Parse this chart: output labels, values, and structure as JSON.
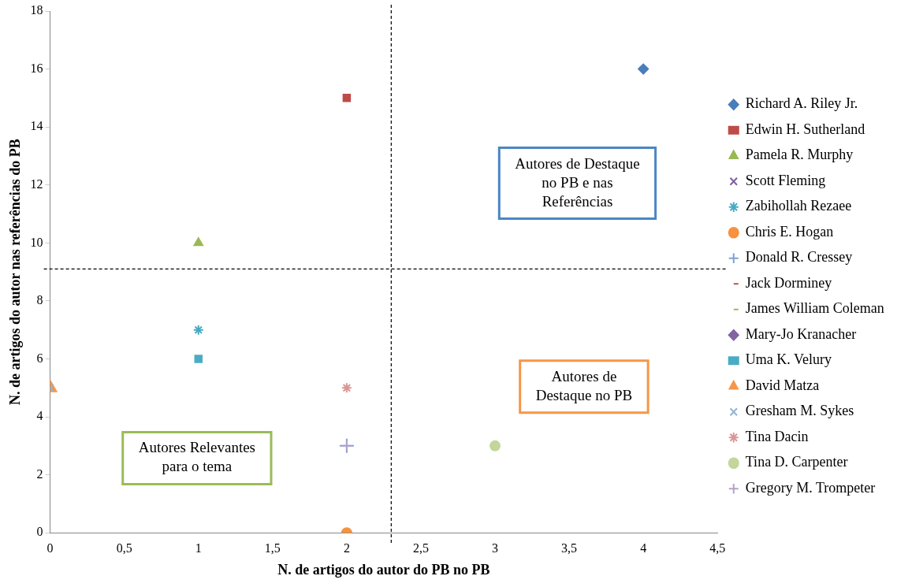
{
  "chart_data": {
    "type": "scatter",
    "xlabel": "N. de artigos do autor do PB no PB",
    "ylabel": "N. de artigos do autor nas referências do PB",
    "xlim": [
      0,
      4.5
    ],
    "xticks": [
      0,
      {
        "value": 0.5,
        "label": "0,5"
      },
      1,
      {
        "value": 1.5,
        "label": "1,5"
      },
      2,
      {
        "value": 2.5,
        "label": "2,5"
      },
      3,
      {
        "value": 3.5,
        "label": "3,5"
      },
      4,
      {
        "value": 4.5,
        "label": "4,5"
      }
    ],
    "ylim": [
      0,
      18
    ],
    "yticks": [
      0,
      2,
      4,
      6,
      8,
      10,
      12,
      14,
      16,
      18
    ],
    "grid": false,
    "legend": "right",
    "series": [
      {
        "name": "Richard A. Riley Jr.",
        "color": "#4a7ebb",
        "marker": "diamond",
        "x": [
          4
        ],
        "values": [
          16
        ]
      },
      {
        "name": "Edwin H. Sutherland",
        "color": "#be4b48",
        "marker": "square",
        "x": [
          2
        ],
        "values": [
          15
        ]
      },
      {
        "name": "Pamela R. Murphy",
        "color": "#98b954",
        "marker": "triangle",
        "x": [
          1
        ],
        "values": [
          10
        ]
      },
      {
        "name": "Scott Fleming",
        "color": "#7d60a0",
        "marker": "x",
        "x": [
          null
        ],
        "values": [
          null
        ]
      },
      {
        "name": "Zabihollah Rezaee",
        "color": "#46aac5",
        "x": [
          1
        ],
        "values": [
          7
        ]
      },
      {
        "name": "Chris E. Hogan",
        "color": "#f69240",
        "marker": "circle",
        "x": [
          2
        ],
        "values": [
          0
        ]
      },
      {
        "name": "Donald R. Cressey",
        "color": "#7f9fd6",
        "marker": "cross",
        "x": [
          2
        ],
        "values": [
          3
        ]
      },
      {
        "name": "Jack Dorminey",
        "color": "#c0504d",
        "marker": "dash",
        "x": [
          null
        ],
        "values": [
          null
        ]
      },
      {
        "name": "James William Coleman",
        "color": "#9bbb59",
        "marker": "dash",
        "x": [
          null
        ],
        "values": [
          null
        ]
      },
      {
        "name": "Mary-Jo Kranacher",
        "color": "#8064a2",
        "marker": "diamond",
        "x": [
          null
        ],
        "values": [
          null
        ]
      },
      {
        "name": "Uma K. Velury",
        "color": "#4bacc6",
        "marker": "square",
        "x": [
          1
        ],
        "values": [
          6
        ]
      },
      {
        "name": "David Matza",
        "color": "#f79646",
        "marker": "triangle",
        "x": [
          0
        ],
        "values": [
          5
        ]
      },
      {
        "name": "Gresham M. Sykes",
        "color": "#95b3d7",
        "marker": "x",
        "x": [
          0
        ],
        "values": [
          5
        ]
      },
      {
        "name": "Tina Dacin",
        "color": "#d99694",
        "x": [
          2
        ],
        "values": [
          5
        ]
      },
      {
        "name": "Tina D. Carpenter",
        "color": "#c3d69b",
        "marker": "circle",
        "x": [
          3
        ],
        "values": [
          3
        ]
      },
      {
        "name": "Gregory M. Trompeter",
        "color": "#b3a2c7",
        "marker": "cross",
        "x": [
          2
        ],
        "values": [
          3
        ]
      }
    ],
    "ref_lines": [
      {
        "axis": "y",
        "value": 9.1,
        "color": "#000000",
        "line_style": "dashed"
      },
      {
        "axis": "x",
        "value": 2.3,
        "color": "#000000",
        "line_style": "dashed"
      }
    ],
    "annotations": [
      "Autores de Destaque\nno PB e nas\nReferências",
      "Autores de\nDestaque no PB",
      "Autores Relevantes\npara o tema"
    ]
  }
}
